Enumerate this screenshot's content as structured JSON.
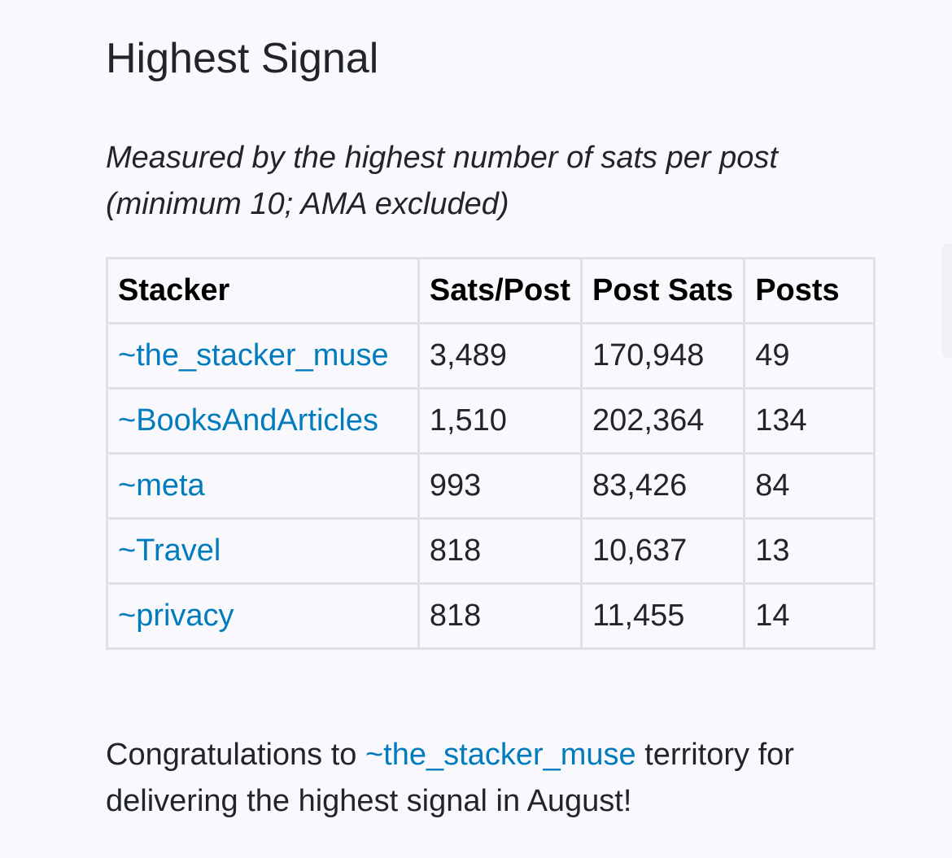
{
  "section": {
    "title": "Highest Signal",
    "subtitle": "Measured by the highest number of sats per post (minimum 10; AMA excluded)"
  },
  "table": {
    "headers": [
      "Stacker",
      "Sats/Post",
      "Post Sats",
      "Posts"
    ],
    "rows": [
      {
        "territory": "~the_stacker_muse",
        "sats_per_post": "3,489",
        "post_sats": "170,948",
        "posts": "49"
      },
      {
        "territory": "~BooksAndArticles",
        "sats_per_post": "1,510",
        "post_sats": "202,364",
        "posts": "134"
      },
      {
        "territory": "~meta",
        "sats_per_post": "993",
        "post_sats": "83,426",
        "posts": "84"
      },
      {
        "territory": "~Travel",
        "sats_per_post": "818",
        "post_sats": "10,637",
        "posts": "13"
      },
      {
        "territory": "~privacy",
        "sats_per_post": "818",
        "post_sats": "11,455",
        "posts": "14"
      }
    ]
  },
  "congrats": {
    "prefix": "Congratulations to ",
    "territory": "~the_stacker_muse",
    "suffix": " territory for delivering the highest signal in August!"
  },
  "colors": {
    "link": "#007cbe",
    "background": "#f9f9fd",
    "border": "#dee2e6"
  }
}
